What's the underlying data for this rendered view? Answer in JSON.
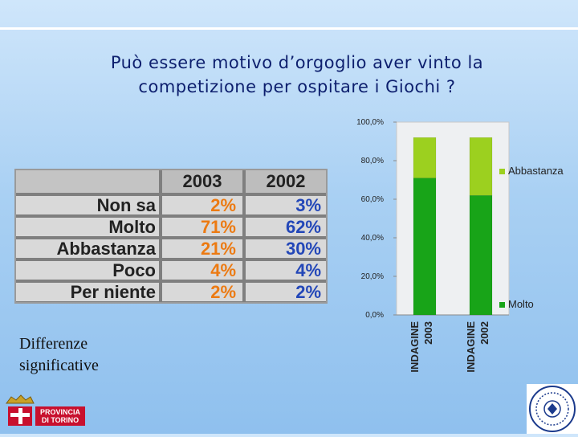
{
  "slide": {
    "title_line1": "Può essere motivo d’orgoglio aver vinto la",
    "title_line2": "competizione per ospitare i Giochi  ?",
    "note_line1": "Differenze",
    "note_line2": "significative"
  },
  "table": {
    "headers": [
      "2003",
      "2002"
    ],
    "rows": [
      {
        "label": "Non sa",
        "v2003": "2%",
        "v2002": "3%"
      },
      {
        "label": "Molto",
        "v2003": "71%",
        "v2002": "62%"
      },
      {
        "label": "Abbastanza",
        "v2003": "21%",
        "v2002": "30%"
      },
      {
        "label": "Poco",
        "v2003": "4%",
        "v2002": "4%"
      },
      {
        "label": "Per niente",
        "v2003": "2%",
        "v2002": "2%"
      }
    ]
  },
  "colors": {
    "molto": "#18a418",
    "abbastanza": "#9cd01f",
    "orange": "#ec7a12",
    "blue": "#2347b8",
    "title": "#0d1f6e"
  },
  "logos": {
    "left": {
      "line1": "PROVINCIA",
      "line2": "DI TORINO"
    }
  },
  "chart_data": {
    "type": "bar",
    "stacked": true,
    "categories": [
      "INDAGINE 2003",
      "INDAGINE 2002"
    ],
    "series": [
      {
        "name": "Molto",
        "values": [
          71,
          62
        ],
        "color": "#18a418"
      },
      {
        "name": "Abbastanza",
        "values": [
          21,
          30
        ],
        "color": "#9cd01f"
      }
    ],
    "yticks": [
      "0,0%",
      "20,0%",
      "40,0%",
      "60,0%",
      "80,0%",
      "100,0%"
    ],
    "ylim": [
      0,
      100
    ],
    "legend_position": "right",
    "grid": false
  }
}
